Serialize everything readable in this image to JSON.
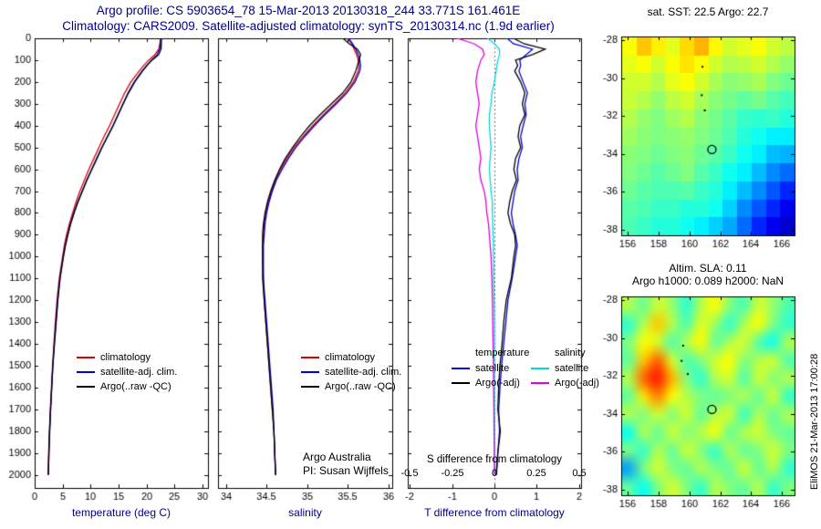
{
  "figure": {
    "title1": "Argo profile: CS 5903654_78 15-Mar-2013 20130318_244 33.771S 161.461E",
    "title2": "Climatology: CARS2009. Satellite-adjusted climatology: synTS_20130314.nc (1.9d earlier)"
  },
  "watermark": "EliMOS 21-Mar-2013 17:00:28",
  "chart_data": [
    {
      "id": "temperature_profile",
      "type": "line",
      "xlabel": "temperature (deg C)",
      "xlim": [
        0,
        31
      ],
      "xticks": [
        0,
        5,
        10,
        15,
        20,
        25,
        30
      ],
      "ylim": [
        0,
        2060
      ],
      "yticks": [
        0,
        100,
        200,
        300,
        400,
        500,
        600,
        700,
        800,
        900,
        1000,
        1100,
        1200,
        1300,
        1400,
        1500,
        1600,
        1700,
        1800,
        1900,
        2000
      ],
      "depths": [
        0,
        25,
        50,
        75,
        100,
        125,
        150,
        200,
        250,
        300,
        350,
        400,
        450,
        500,
        550,
        600,
        650,
        700,
        750,
        800,
        850,
        900,
        950,
        1000,
        1100,
        1200,
        1300,
        1400,
        1500,
        1600,
        1700,
        1800,
        1900,
        2000
      ],
      "series": [
        {
          "name": "climatology",
          "color": "#dd0000",
          "values": [
            22.5,
            22.4,
            22.2,
            21.5,
            20.4,
            19.5,
            18.7,
            17.2,
            16.1,
            15.2,
            14.3,
            13.4,
            12.4,
            11.5,
            10.6,
            9.7,
            8.9,
            8.1,
            7.4,
            6.8,
            6.2,
            5.7,
            5.3,
            5.0,
            4.4,
            4.0,
            3.7,
            3.45,
            3.2,
            3.0,
            2.8,
            2.65,
            2.5,
            2.4
          ]
        },
        {
          "name": "satellite-adj. clim.",
          "color": "#0000dd",
          "values": [
            22.5,
            22.45,
            22.35,
            21.9,
            20.9,
            20.0,
            19.2,
            17.8,
            16.7,
            15.8,
            14.9,
            14.0,
            13.0,
            12.0,
            11.1,
            10.2,
            9.3,
            8.5,
            7.7,
            7.0,
            6.4,
            5.9,
            5.45,
            5.1,
            4.5,
            4.1,
            3.8,
            3.5,
            3.25,
            3.05,
            2.85,
            2.65,
            2.55,
            2.45
          ]
        },
        {
          "name": "Argo(..raw -QC)",
          "color": "#000000",
          "values": [
            22.7,
            22.65,
            22.6,
            22.2,
            21.0,
            20.1,
            19.3,
            17.9,
            16.8,
            15.85,
            14.95,
            14.05,
            13.05,
            12.05,
            11.15,
            10.25,
            9.35,
            8.55,
            7.75,
            7.05,
            6.45,
            5.95,
            5.5,
            5.15,
            4.55,
            4.15,
            3.85,
            3.55,
            3.25,
            3.05,
            2.85,
            2.7,
            2.55,
            2.45
          ]
        }
      ]
    },
    {
      "id": "salinity_profile",
      "type": "line",
      "xlabel": "salinity",
      "xlim": [
        33.9,
        36.05
      ],
      "xticks": [
        34,
        34.5,
        35,
        35.5,
        36
      ],
      "ylim": [
        0,
        2060
      ],
      "yticks": [
        0,
        100,
        200,
        300,
        400,
        500,
        600,
        700,
        800,
        900,
        1000,
        1100,
        1200,
        1300,
        1400,
        1500,
        1600,
        1700,
        1800,
        1900,
        2000
      ],
      "annotation": [
        "Argo Australia",
        "PI: Susan Wijffels"
      ],
      "depths": [
        0,
        25,
        50,
        75,
        100,
        125,
        150,
        200,
        250,
        300,
        350,
        400,
        450,
        500,
        550,
        600,
        650,
        700,
        750,
        800,
        850,
        900,
        950,
        1000,
        1100,
        1200,
        1300,
        1400,
        1500,
        1600,
        1700,
        1800,
        1900,
        2000
      ],
      "series": [
        {
          "name": "climatology",
          "color": "#dd0000",
          "values": [
            35.5,
            35.55,
            35.58,
            35.61,
            35.63,
            35.64,
            35.63,
            35.57,
            35.47,
            35.34,
            35.2,
            35.07,
            34.95,
            34.84,
            34.75,
            34.67,
            34.61,
            34.56,
            34.52,
            34.49,
            34.47,
            34.46,
            34.45,
            34.45,
            34.46,
            34.47,
            34.49,
            34.51,
            34.53,
            34.55,
            34.57,
            34.59,
            34.6,
            34.61
          ]
        },
        {
          "name": "satellite-adj. clim.",
          "color": "#0000dd",
          "values": [
            35.51,
            35.56,
            35.6,
            35.63,
            35.65,
            35.66,
            35.65,
            35.59,
            35.49,
            35.36,
            35.22,
            35.09,
            34.97,
            34.86,
            34.77,
            34.69,
            34.62,
            34.57,
            34.53,
            34.5,
            34.48,
            34.47,
            34.46,
            34.46,
            34.46,
            34.48,
            34.5,
            34.52,
            34.54,
            34.56,
            34.58,
            34.59,
            34.6,
            34.61
          ]
        },
        {
          "name": "Argo(..raw -QC)",
          "color": "#000000",
          "values": [
            35.44,
            35.52,
            35.62,
            35.66,
            35.64,
            35.62,
            35.6,
            35.54,
            35.44,
            35.3,
            35.16,
            35.03,
            34.92,
            34.82,
            34.73,
            34.66,
            34.6,
            34.55,
            34.51,
            34.48,
            34.46,
            34.45,
            34.45,
            34.45,
            34.45,
            34.47,
            34.49,
            34.51,
            34.53,
            34.55,
            34.57,
            34.59,
            34.6,
            34.61
          ]
        }
      ]
    },
    {
      "id": "difference_profile",
      "type": "line",
      "xlabel": "T difference from climatology",
      "xlim": [
        -2.05,
        2.05
      ],
      "xticks": [
        -2,
        -1,
        0,
        1,
        2
      ],
      "ylim": [
        0,
        2060
      ],
      "yticks": [
        0,
        100,
        200,
        300,
        400,
        500,
        600,
        700,
        800,
        900,
        1000,
        1100,
        1200,
        1300,
        1400,
        1500,
        1600,
        1700,
        1800,
        1900,
        2000
      ],
      "zero_line": true,
      "s_axis": {
        "label": "S difference from climatology",
        "lim": [
          -0.5125,
          0.5125
        ],
        "ticks": [
          -0.5,
          -0.25,
          0,
          0.25,
          0.5
        ]
      },
      "legend_groups": [
        {
          "title": "temperature",
          "entries": [
            {
              "label": "satellite",
              "color": "#0000dd"
            },
            {
              "label": "Argo(-adj)",
              "color": "#000000"
            }
          ]
        },
        {
          "title": "salinity",
          "entries": [
            {
              "label": "satellite",
              "color": "#00d8e0"
            },
            {
              "label": "Argo(-adj)",
              "color": "#e000e0"
            }
          ]
        }
      ],
      "depths": [
        0,
        25,
        50,
        75,
        100,
        125,
        150,
        200,
        250,
        300,
        350,
        400,
        450,
        500,
        550,
        600,
        650,
        700,
        750,
        800,
        850,
        900,
        950,
        1000,
        1100,
        1200,
        1300,
        1400,
        1500,
        1600,
        1700,
        1800,
        1900,
        2000
      ],
      "series": [
        {
          "name": "satellite T diff",
          "axis": "T",
          "color": "#0000dd",
          "values": [
            0.3,
            0.45,
            0.9,
            0.75,
            0.6,
            0.62,
            0.58,
            0.68,
            0.78,
            0.72,
            0.75,
            0.68,
            0.62,
            0.66,
            0.58,
            0.54,
            0.56,
            0.48,
            0.44,
            0.4,
            0.44,
            0.5,
            0.54,
            0.5,
            0.42,
            0.32,
            0.27,
            0.22,
            0.17,
            0.13,
            0.1,
            0.12,
            0.08,
            0.05
          ]
        },
        {
          "name": "Argo(-adj) T diff",
          "axis": "T",
          "color": "#000000",
          "values": [
            0.45,
            0.7,
            1.2,
            0.9,
            0.5,
            0.55,
            0.48,
            0.62,
            0.72,
            0.66,
            0.72,
            0.6,
            0.56,
            0.62,
            0.5,
            0.46,
            0.52,
            0.42,
            0.36,
            0.32,
            0.38,
            0.48,
            0.5,
            0.46,
            0.4,
            0.28,
            0.22,
            0.18,
            0.13,
            0.1,
            0.08,
            0.14,
            0.08,
            0.04
          ]
        },
        {
          "name": "satellite S diff",
          "axis": "S",
          "color": "#00d8e0",
          "values": [
            -0.04,
            0,
            0.03,
            0.03,
            0.02,
            0.015,
            0.01,
            0,
            -0.015,
            -0.02,
            -0.03,
            -0.03,
            -0.025,
            -0.02,
            -0.025,
            -0.03,
            -0.025,
            -0.02,
            -0.012,
            -0.012,
            -0.01,
            -0.008,
            -0.006,
            -0.005,
            -0.004,
            -0.002,
            0,
            0,
            0,
            0,
            0,
            0,
            0,
            0
          ]
        },
        {
          "name": "Argo(-adj) S diff",
          "axis": "S",
          "color": "#e000e0",
          "values": [
            -0.22,
            -0.12,
            -0.07,
            -0.06,
            -0.08,
            -0.09,
            -0.1,
            -0.11,
            -0.1,
            -0.09,
            -0.1,
            -0.11,
            -0.1,
            -0.09,
            -0.08,
            -0.09,
            -0.08,
            -0.06,
            -0.05,
            -0.045,
            -0.035,
            -0.03,
            -0.025,
            -0.02,
            -0.015,
            -0.012,
            -0.01,
            -0.008,
            -0.006,
            -0.005,
            -0.003,
            -0.002,
            0,
            0
          ]
        }
      ]
    },
    {
      "id": "sst_map",
      "type": "heatmap",
      "title": "sat. SST: 22.5 Argo: 22.7",
      "lon_range": [
        155.6,
        166.8
      ],
      "lat_range": [
        -27.8,
        -38.3
      ],
      "xticks": [
        156,
        158,
        160,
        162,
        164,
        166
      ],
      "yticks": [
        -28,
        -30,
        -32,
        -34,
        -36,
        -38
      ],
      "smooth": false,
      "marker": {
        "lon": 161.461,
        "lat": -33.771
      },
      "trail": [
        [
          160.85,
          -29.4
        ],
        [
          160.8,
          -30.9
        ],
        [
          161.0,
          -31.7
        ]
      ],
      "grid": [
        [
          0.62,
          0.68,
          0.64,
          0.6,
          0.66,
          0.7,
          0.63,
          0.58,
          0.6,
          0.62,
          0.58,
          0.56
        ],
        [
          0.6,
          0.62,
          0.58,
          0.62,
          0.65,
          0.62,
          0.58,
          0.55,
          0.56,
          0.58,
          0.55,
          0.52
        ],
        [
          0.58,
          0.58,
          0.55,
          0.6,
          0.62,
          0.58,
          0.54,
          0.51,
          0.52,
          0.54,
          0.5,
          0.48
        ],
        [
          0.57,
          0.55,
          0.52,
          0.56,
          0.58,
          0.54,
          0.51,
          0.49,
          0.47,
          0.49,
          0.46,
          0.44
        ],
        [
          0.55,
          0.52,
          0.5,
          0.53,
          0.55,
          0.51,
          0.49,
          0.46,
          0.43,
          0.42,
          0.43,
          0.41
        ],
        [
          0.53,
          0.51,
          0.5,
          0.51,
          0.52,
          0.5,
          0.48,
          0.45,
          0.41,
          0.39,
          0.36,
          0.36
        ],
        [
          0.51,
          0.5,
          0.48,
          0.5,
          0.51,
          0.48,
          0.46,
          0.43,
          0.39,
          0.36,
          0.31,
          0.3
        ],
        [
          0.5,
          0.48,
          0.46,
          0.48,
          0.5,
          0.46,
          0.43,
          0.39,
          0.36,
          0.31,
          0.26,
          0.23
        ],
        [
          0.48,
          0.46,
          0.45,
          0.45,
          0.46,
          0.43,
          0.41,
          0.36,
          0.31,
          0.26,
          0.21,
          0.16
        ],
        [
          0.46,
          0.45,
          0.43,
          0.43,
          0.41,
          0.41,
          0.39,
          0.33,
          0.26,
          0.21,
          0.16,
          0.11
        ],
        [
          0.45,
          0.43,
          0.41,
          0.41,
          0.39,
          0.36,
          0.33,
          0.29,
          0.23,
          0.16,
          0.11,
          0.08
        ]
      ]
    },
    {
      "id": "sla_map",
      "type": "heatmap",
      "title1": "Altim. SLA: 0.11",
      "title2": "Argo h1000: 0.089 h2000: NaN",
      "lon_range": [
        155.6,
        166.8
      ],
      "lat_range": [
        -27.8,
        -38.3
      ],
      "xticks": [
        156,
        158,
        160,
        162,
        164,
        166
      ],
      "yticks": [
        -28,
        -30,
        -32,
        -34,
        -36,
        -38
      ],
      "smooth": true,
      "marker": {
        "lon": 161.461,
        "lat": -33.771
      },
      "trail": [
        [
          159.6,
          -30.4
        ],
        [
          159.5,
          -31.2
        ],
        [
          159.9,
          -31.9
        ]
      ],
      "grid": [
        [
          0.55,
          0.48,
          0.58,
          0.52,
          0.42,
          0.55,
          0.62,
          0.5,
          0.45,
          0.58,
          0.52,
          0.45
        ],
        [
          0.42,
          0.55,
          0.68,
          0.55,
          0.45,
          0.6,
          0.52,
          0.42,
          0.55,
          0.62,
          0.5,
          0.42
        ],
        [
          0.5,
          0.62,
          0.58,
          0.45,
          0.55,
          0.63,
          0.47,
          0.55,
          0.58,
          0.45,
          0.38,
          0.55
        ],
        [
          0.47,
          0.68,
          0.78,
          0.58,
          0.45,
          0.5,
          0.58,
          0.62,
          0.5,
          0.55,
          0.58,
          0.45
        ],
        [
          0.55,
          0.78,
          0.85,
          0.7,
          0.5,
          0.42,
          0.55,
          0.58,
          0.45,
          0.58,
          0.5,
          0.55
        ],
        [
          0.47,
          0.65,
          0.75,
          0.62,
          0.55,
          0.5,
          0.47,
          0.5,
          0.55,
          0.47,
          0.58,
          0.42
        ],
        [
          0.55,
          0.5,
          0.58,
          0.5,
          0.58,
          0.47,
          0.55,
          0.58,
          0.42,
          0.55,
          0.47,
          0.55
        ],
        [
          0.38,
          0.55,
          0.47,
          0.58,
          0.5,
          0.55,
          0.62,
          0.47,
          0.55,
          0.58,
          0.5,
          0.47
        ],
        [
          0.5,
          0.42,
          0.55,
          0.47,
          0.58,
          0.5,
          0.42,
          0.55,
          0.47,
          0.5,
          0.58,
          0.5
        ],
        [
          0.28,
          0.5,
          0.58,
          0.5,
          0.47,
          0.55,
          0.5,
          0.47,
          0.58,
          0.47,
          0.55,
          0.42
        ],
        [
          0.47,
          0.38,
          0.5,
          0.58,
          0.5,
          0.42,
          0.55,
          0.5,
          0.47,
          0.55,
          0.42,
          0.5
        ]
      ]
    }
  ]
}
